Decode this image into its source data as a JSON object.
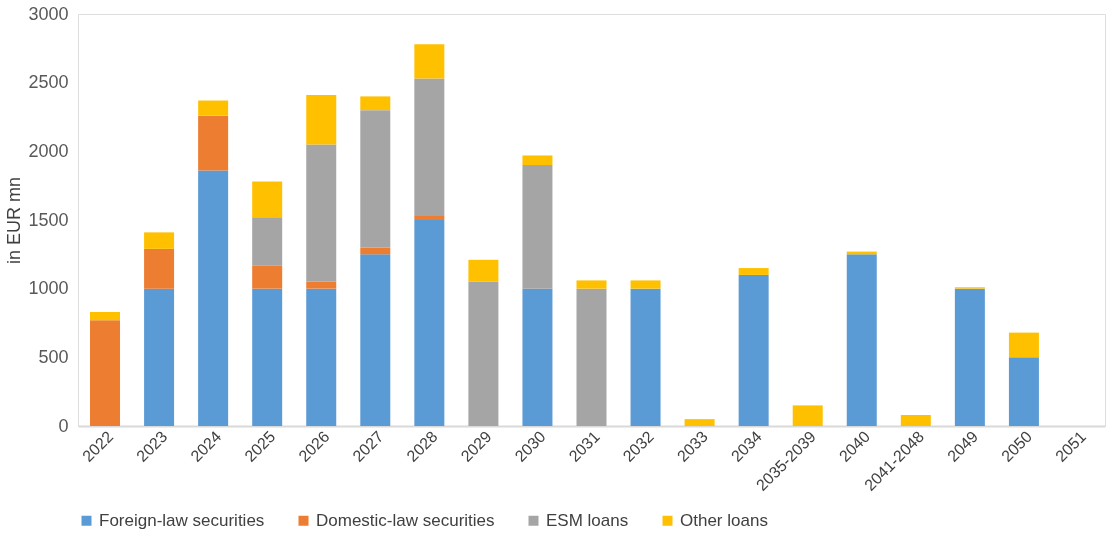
{
  "chart_data": {
    "type": "bar",
    "stacked": true,
    "ylabel": "in EUR mn",
    "categories": [
      "2022",
      "2023",
      "2024",
      "2025",
      "2026",
      "2027",
      "2028",
      "2029",
      "2030",
      "2031",
      "2032",
      "2033",
      "2034",
      "2035-2039",
      "2040",
      "2041-2048",
      "2049",
      "2050",
      "2051"
    ],
    "series": [
      {
        "name": "Foreign-law securities",
        "color": "#5b9bd5",
        "values": [
          null,
          1000,
          1860,
          1000,
          1000,
          1250,
          1500,
          null,
          1000,
          null,
          1000,
          null,
          1100,
          null,
          1250,
          null,
          1000,
          500,
          null
        ]
      },
      {
        "name": "Domestic-law securities",
        "color": "#ed7d31",
        "values": [
          770,
          290,
          400,
          170,
          50,
          50,
          30,
          null,
          null,
          null,
          null,
          null,
          null,
          null,
          null,
          null,
          null,
          null,
          null
        ]
      },
      {
        "name": "ESM loans",
        "color": "#a5a5a5",
        "values": [
          null,
          null,
          null,
          350,
          1000,
          1000,
          1000,
          1050,
          900,
          1000,
          null,
          null,
          null,
          null,
          null,
          null,
          null,
          null,
          null
        ]
      },
      {
        "name": "Other loans",
        "color": "#ffc000",
        "values": [
          60,
          120,
          110,
          260,
          360,
          100,
          250,
          160,
          70,
          60,
          60,
          50,
          50,
          150,
          20,
          80,
          10,
          180,
          null
        ]
      }
    ],
    "ylim": [
      0,
      3000
    ],
    "yticks": [
      0,
      500,
      1000,
      1500,
      2000,
      2500,
      3000
    ],
    "grid": false,
    "legend": "bottom"
  }
}
